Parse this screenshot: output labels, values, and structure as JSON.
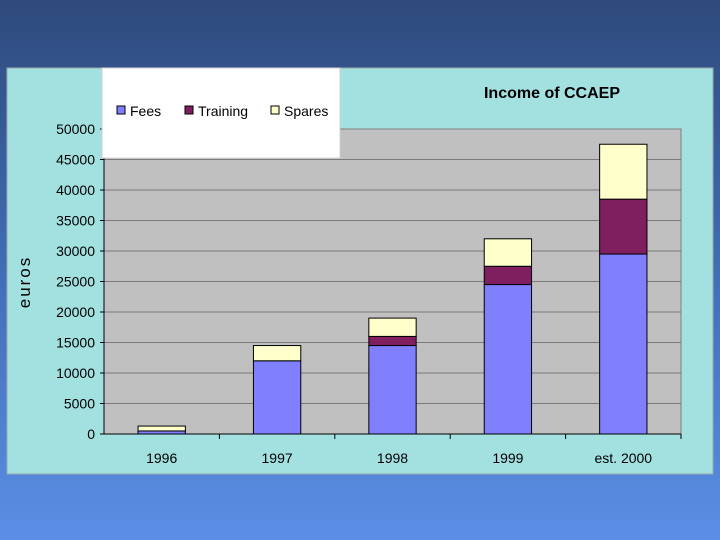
{
  "chart_data": {
    "type": "bar",
    "stacked": true,
    "title": "Income of CCAEP",
    "xlabel": "",
    "ylabel": "euros",
    "categories": [
      "1996",
      "1997",
      "1998",
      "1999",
      "est. 2000"
    ],
    "series": [
      {
        "name": "Fees",
        "color": "#8080ff",
        "values": [
          500,
          12000,
          14500,
          24500,
          29500
        ]
      },
      {
        "name": "Training",
        "color": "#7f1f5f",
        "values": [
          0,
          0,
          1500,
          3000,
          9000
        ]
      },
      {
        "name": "Spares",
        "color": "#ffffcc",
        "values": [
          800,
          2500,
          3000,
          4500,
          9000
        ]
      }
    ],
    "ylim": [
      0,
      50000
    ],
    "yticks": [
      "0",
      "5000",
      "10000",
      "15000",
      "20000",
      "25000",
      "30000",
      "35000",
      "40000",
      "45000",
      "50000"
    ],
    "grid": true,
    "legend": "top-left"
  },
  "colors": {
    "chart_area": "#a3e0e0",
    "plot_area": "#c0c0c0"
  }
}
